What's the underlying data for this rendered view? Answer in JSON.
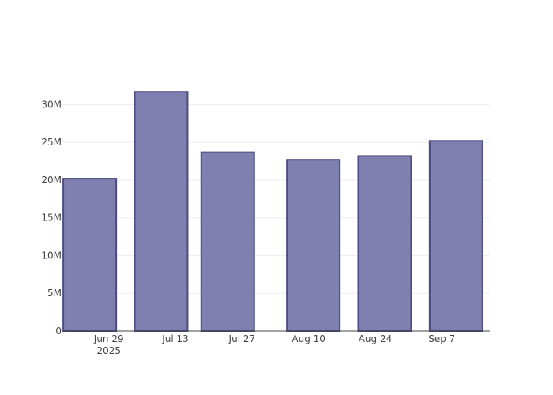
{
  "chart_data": {
    "type": "bar",
    "x": [
      "2025-06-25",
      "2025-07-10",
      "2025-07-24",
      "2025-08-11",
      "2025-08-26",
      "2025-09-10"
    ],
    "values": [
      20200000,
      31700000,
      23700000,
      22700000,
      23200000,
      25200000
    ],
    "color": "#7f7fb0",
    "edge_color": "#4b4a82",
    "xlim": [
      "2025-06-19T10:00",
      "2025-09-17T02:00"
    ],
    "xticks": [
      {
        "value": "2025-06-29",
        "label": "Jun 29\n2025"
      },
      {
        "value": "2025-07-13",
        "label": "Jul 13"
      },
      {
        "value": "2025-07-27",
        "label": "Jul 27"
      },
      {
        "value": "2025-08-10",
        "label": "Aug 10"
      },
      {
        "value": "2025-08-24",
        "label": "Aug 24"
      },
      {
        "value": "2025-09-07",
        "label": "Sep 7"
      }
    ],
    "ylim": [
      0,
      33400000
    ],
    "yticks": [
      {
        "value": 0,
        "label": "0"
      },
      {
        "value": 5000000,
        "label": "5M"
      },
      {
        "value": 10000000,
        "label": "10M"
      },
      {
        "value": 15000000,
        "label": "15M"
      },
      {
        "value": 20000000,
        "label": "20M"
      },
      {
        "value": 25000000,
        "label": "25M"
      },
      {
        "value": 30000000,
        "label": "30M"
      }
    ],
    "grid": true
  }
}
